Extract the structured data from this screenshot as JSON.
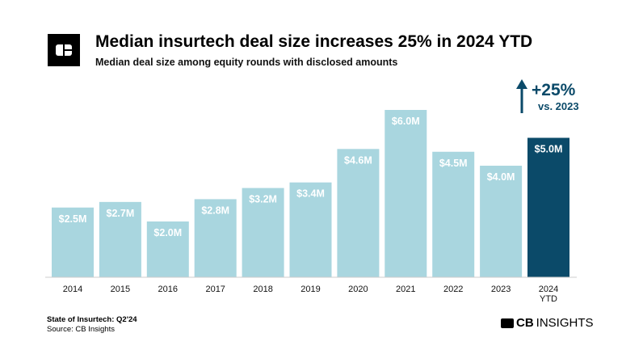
{
  "chart_data": {
    "type": "bar",
    "title": "Median insurtech deal size increases 25% in 2024 YTD",
    "subtitle": "Median deal size among equity rounds with disclosed amounts",
    "categories": [
      "2014",
      "2015",
      "2016",
      "2017",
      "2018",
      "2019",
      "2020",
      "2021",
      "2022",
      "2023",
      "2024 YTD"
    ],
    "values": [
      2.5,
      2.7,
      2.0,
      2.8,
      3.2,
      3.4,
      4.6,
      6.0,
      4.5,
      4.0,
      5.0
    ],
    "labels": [
      "$2.5M",
      "$2.7M",
      "$2.0M",
      "$2.8M",
      "$3.2M",
      "$3.4M",
      "$4.6M",
      "$6.0M",
      "$4.5M",
      "$4.0M",
      "$5.0M"
    ],
    "unit": "$M",
    "ylim": [
      0,
      6.0
    ],
    "grid": false,
    "highlight_index": 10,
    "annotation": {
      "change": "+25%",
      "comparison": "vs. 2023"
    },
    "colors": {
      "bar": "#a9d6df",
      "highlight": "#0b4a69",
      "annotation": "#0b4a69"
    }
  },
  "footer": {
    "report": "State of Insurtech: Q2'24",
    "source": "Source: CB Insights"
  },
  "brand": {
    "bold": "CB",
    "rest": "INSIGHTS"
  }
}
